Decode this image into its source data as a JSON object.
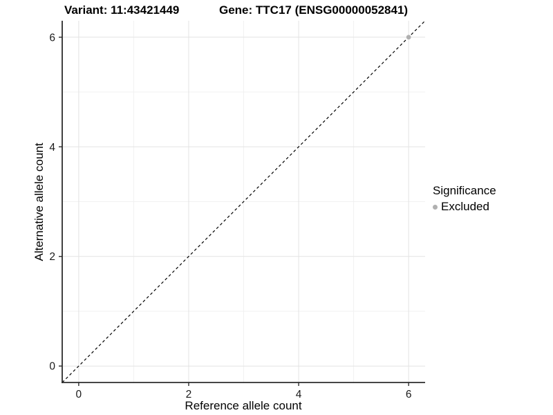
{
  "titles": {
    "variant": "Variant: 11:43421449",
    "gene": "Gene: TTC17 (ENSG00000052841)"
  },
  "chart_data": {
    "type": "scatter",
    "xlabel": "Reference allele count",
    "ylabel": "Alternative allele count",
    "xlim": [
      -0.3,
      6.3
    ],
    "ylim": [
      -0.3,
      6.3
    ],
    "x_ticks": [
      0,
      2,
      4,
      6
    ],
    "y_ticks": [
      0,
      2,
      4,
      6
    ],
    "x_minor_ticks": [
      1,
      3,
      5
    ],
    "y_minor_ticks": [
      1,
      3,
      5
    ],
    "grid": true,
    "points": [
      {
        "x": 6,
        "y": 6,
        "series": "Excluded"
      }
    ],
    "identity_line": {
      "style": "dashed",
      "from": [
        -0.3,
        -0.3
      ],
      "to": [
        6.3,
        6.3
      ],
      "color": "#000000"
    },
    "legend": {
      "title": "Significance",
      "position": "right",
      "items": [
        {
          "label": "Excluded",
          "color": "#b0b0b0"
        }
      ]
    },
    "colors": {
      "major_grid": "#e3e3e3",
      "minor_grid": "#f1f1f1",
      "axis_line": "#2b2b2b",
      "tick_label": "#1a1a1a",
      "point": "#b0b0b0"
    }
  }
}
